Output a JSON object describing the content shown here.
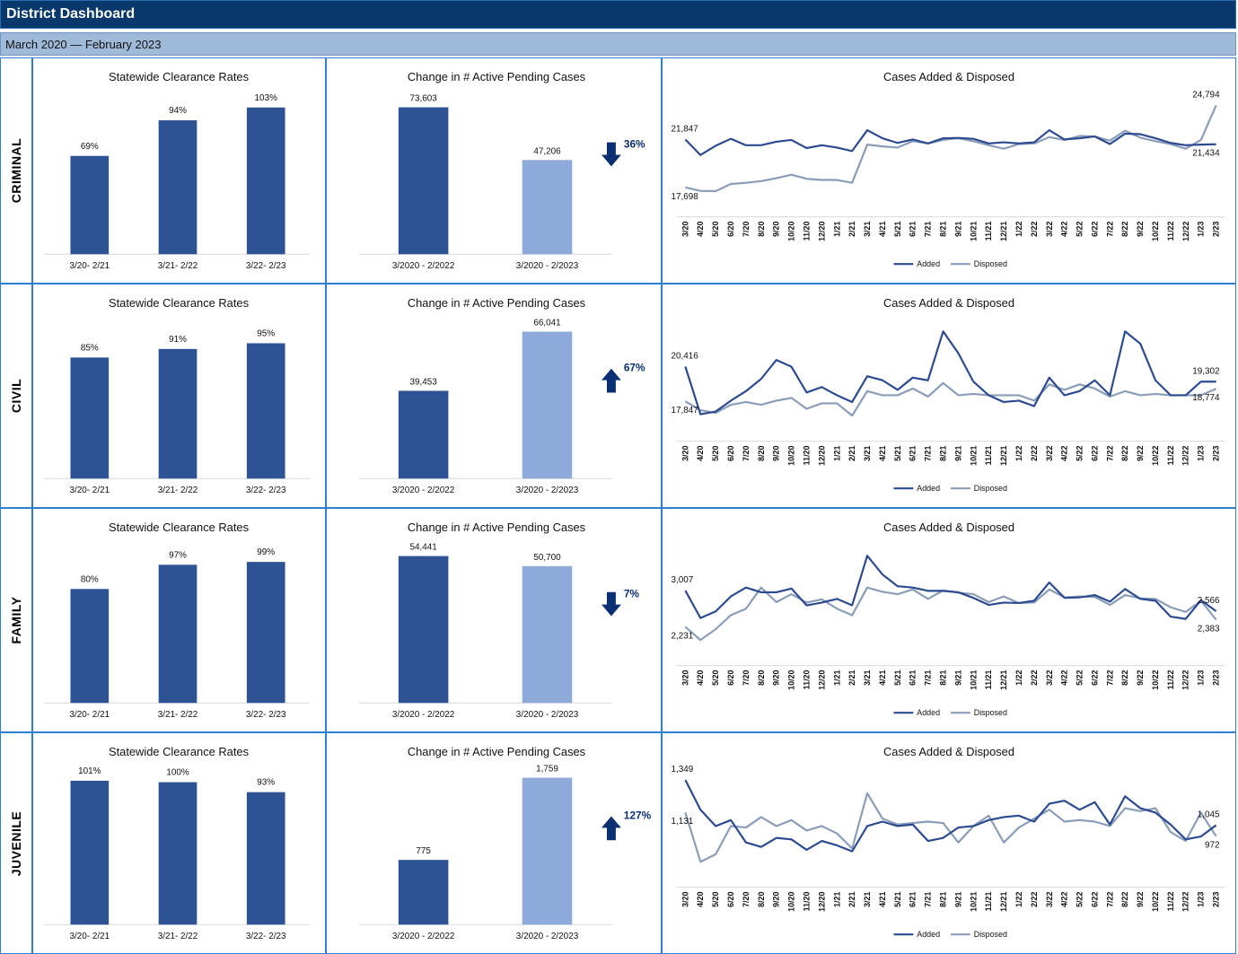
{
  "header": {
    "title": "District Dashboard",
    "subtitle": "March 2020 — February 2023"
  },
  "colors": {
    "dark_bar": "#2e5394",
    "light_bar": "#8eaadb",
    "added_line": "#2c4a8f",
    "disposed_line": "#8a9db8",
    "arrow": "#0b2f73"
  },
  "months": [
    "3/20",
    "4/20",
    "5/20",
    "6/20",
    "7/20",
    "8/20",
    "9/20",
    "10/20",
    "11/20",
    "12/20",
    "1/21",
    "2/21",
    "3/21",
    "4/21",
    "5/21",
    "6/21",
    "7/21",
    "8/21",
    "9/21",
    "10/21",
    "11/21",
    "12/21",
    "1/22",
    "2/22",
    "3/22",
    "4/22",
    "5/22",
    "6/22",
    "7/22",
    "8/22",
    "9/22",
    "10/22",
    "11/22",
    "12/22",
    "1/23",
    "2/23"
  ],
  "legend": {
    "added": "Added",
    "disposed": "Disposed"
  },
  "rows": [
    {
      "name": "CRIMINAL",
      "clearance": {
        "type": "bar",
        "title": "Statewide Clearance Rates",
        "categories": [
          "3/20- 2/21",
          "3/21- 2/22",
          "3/22- 2/23"
        ],
        "values": [
          69,
          94,
          103
        ],
        "labels": [
          "69%",
          "94%",
          "103%"
        ]
      },
      "pending": {
        "type": "bar",
        "title": "Change in # Active Pending Cases",
        "categories": [
          "3/2020 - 2/2022",
          "3/2020 - 2/2023"
        ],
        "values": [
          73603,
          47206
        ],
        "labels": [
          "73,603",
          "47,206"
        ],
        "change_pct": "36%",
        "direction": "down"
      },
      "trend": {
        "type": "line",
        "title": "Cases Added & Disposed",
        "series": [
          {
            "name": "Added",
            "values": [
              21847,
              20500,
              21300,
              21900,
              21350,
              21350,
              21650,
              21800,
              21100,
              21350,
              21150,
              20850,
              22650,
              21950,
              21550,
              21850,
              21500,
              21950,
              21980,
              21900,
              21500,
              21600,
              21500,
              21600,
              22650,
              21850,
              21950,
              22100,
              21450,
              22350,
              22300,
              21950,
              21550,
              21350,
              21400,
              21434
            ]
          },
          {
            "name": "Disposed",
            "values": [
              17698,
              17400,
              17380,
              18000,
              18100,
              18250,
              18500,
              18800,
              18450,
              18350,
              18350,
              18100,
              21400,
              21250,
              21150,
              21700,
              21500,
              21800,
              21950,
              21700,
              21350,
              21050,
              21450,
              21500,
              22050,
              21800,
              22150,
              22100,
              21750,
              22600,
              22000,
              21700,
              21450,
              21050,
              21800,
              24794
            ]
          }
        ],
        "first_labels": {
          "added": "21,847",
          "disposed": "17,698"
        },
        "last_labels": {
          "added": "21,434",
          "disposed": "24,794"
        }
      }
    },
    {
      "name": "CIVIL",
      "clearance": {
        "type": "bar",
        "title": "Statewide Clearance Rates",
        "categories": [
          "3/20- 2/21",
          "3/21- 2/22",
          "3/22- 2/23"
        ],
        "values": [
          85,
          91,
          95
        ],
        "labels": [
          "85%",
          "91%",
          "95%"
        ]
      },
      "pending": {
        "type": "bar",
        "title": "Change in # Active Pending Cases",
        "categories": [
          "3/2020 - 2/2022",
          "3/2020 - 2/2023"
        ],
        "values": [
          39453,
          66041
        ],
        "labels": [
          "39,453",
          "66,041"
        ],
        "change_pct": "67%",
        "direction": "up"
      },
      "trend": {
        "type": "line",
        "title": "Cases Added & Disposed",
        "series": [
          {
            "name": "Added",
            "values": [
              20416,
              16900,
              17100,
              17900,
              18600,
              19500,
              20900,
              20400,
              18500,
              18900,
              18300,
              17800,
              19700,
              19400,
              18700,
              19600,
              19400,
              23000,
              21400,
              19300,
              18300,
              17800,
              17900,
              17500,
              19600,
              18300,
              18600,
              19400,
              18300,
              23000,
              22100,
              19400,
              18300,
              18300,
              19300,
              19302
            ]
          },
          {
            "name": "Disposed",
            "values": [
              17847,
              17200,
              17000,
              17600,
              17800,
              17600,
              17900,
              18100,
              17300,
              17700,
              17700,
              16800,
              18600,
              18300,
              18300,
              18800,
              18200,
              19200,
              18300,
              18400,
              18300,
              18300,
              18300,
              17900,
              19100,
              18700,
              19100,
              18800,
              18200,
              18600,
              18300,
              18400,
              18300,
              18300,
              18300,
              18774
            ]
          }
        ],
        "first_labels": {
          "added": "20,416",
          "disposed": "17,847"
        },
        "last_labels": {
          "added": "19,302",
          "disposed": "18,774"
        }
      }
    },
    {
      "name": "FAMILY",
      "clearance": {
        "type": "bar",
        "title": "Statewide Clearance Rates",
        "categories": [
          "3/20- 2/21",
          "3/21- 2/22",
          "3/22- 2/23"
        ],
        "values": [
          80,
          97,
          99
        ],
        "labels": [
          "80%",
          "97%",
          "99%"
        ]
      },
      "pending": {
        "type": "bar",
        "title": "Change in # Active Pending Cases",
        "categories": [
          "3/2020 - 2/2022",
          "3/2020 - 2/2023"
        ],
        "values": [
          54441,
          50700
        ],
        "labels": [
          "54,441",
          "50,700"
        ],
        "change_pct": "7%",
        "direction": "down"
      },
      "trend": {
        "type": "line",
        "title": "Cases Added & Disposed",
        "series": [
          {
            "name": "Added",
            "values": [
              3007,
              2420,
              2560,
              2880,
              3070,
              2970,
              2970,
              3050,
              2690,
              2750,
              2830,
              2690,
              3750,
              3350,
              3100,
              3070,
              3000,
              3000,
              2970,
              2850,
              2700,
              2750,
              2740,
              2790,
              3180,
              2850,
              2860,
              2910,
              2770,
              3040,
              2830,
              2790,
              2450,
              2400,
              2800,
              2566
            ]
          },
          {
            "name": "Disposed",
            "values": [
              2231,
              1950,
              2180,
              2480,
              2620,
              3070,
              2760,
              2930,
              2750,
              2820,
              2620,
              2480,
              3070,
              2980,
              2930,
              3030,
              2830,
              3010,
              2960,
              2930,
              2760,
              2880,
              2740,
              2750,
              3030,
              2860,
              2880,
              2870,
              2700,
              2910,
              2840,
              2830,
              2650,
              2550,
              2790,
              2383
            ]
          }
        ],
        "first_labels": {
          "added": "3,007",
          "disposed": "2,231"
        },
        "last_labels": {
          "added": "2,566",
          "disposed": "2,383"
        }
      }
    },
    {
      "name": "JUVENILE",
      "clearance": {
        "type": "bar",
        "title": "Statewide Clearance Rates",
        "categories": [
          "3/20- 2/21",
          "3/21- 2/22",
          "3/22- 2/23"
        ],
        "values": [
          101,
          100,
          93
        ],
        "labels": [
          "101%",
          "100%",
          "93%"
        ]
      },
      "pending": {
        "type": "bar",
        "title": "Change in # Active Pending Cases",
        "categories": [
          "3/2020 - 2/2022",
          "3/2020 - 2/2023"
        ],
        "values": [
          775,
          1759
        ],
        "labels": [
          "775",
          "1,759"
        ],
        "change_pct": "127%",
        "direction": "up"
      },
      "trend": {
        "type": "line",
        "title": "Cases Added & Disposed",
        "series": [
          {
            "name": "Added",
            "values": [
              1349,
              1150,
              1040,
              1080,
              930,
              900,
              960,
              950,
              880,
              940,
              910,
              870,
              1040,
              1070,
              1040,
              1050,
              940,
              960,
              1030,
              1040,
              1080,
              1100,
              1110,
              1070,
              1190,
              1210,
              1150,
              1200,
              1050,
              1240,
              1160,
              1130,
              1050,
              950,
              970,
              1045
            ]
          },
          {
            "name": "Disposed",
            "values": [
              1131,
              800,
              850,
              1040,
              1030,
              1100,
              1040,
              1080,
              1010,
              1040,
              990,
              890,
              1260,
              1090,
              1050,
              1060,
              1070,
              1060,
              930,
              1040,
              1110,
              930,
              1030,
              1090,
              1150,
              1070,
              1080,
              1070,
              1040,
              1160,
              1140,
              1160,
              1000,
              940,
              1130,
              972
            ]
          }
        ],
        "first_labels": {
          "added": "1,349",
          "disposed": "1,131"
        },
        "last_labels": {
          "added": "1,045",
          "disposed": "972"
        }
      }
    }
  ],
  "chart_data": [
    {
      "type": "bar",
      "title": "Statewide Clearance Rates",
      "categories": [
        "3/20- 2/21",
        "3/21- 2/22",
        "3/22- 2/23"
      ],
      "values": [
        69,
        94,
        103
      ]
    },
    {
      "type": "bar",
      "title": "Change in # Active Pending Cases",
      "categories": [
        "3/2020 - 2/2022",
        "3/2020 - 2/2023"
      ],
      "values": [
        73603,
        47206
      ]
    },
    {
      "type": "line",
      "title": "Cases Added & Disposed",
      "first_and_last_values": {
        "Added": [
          21847,
          21434
        ],
        "Disposed": [
          17698,
          24794
        ]
      }
    },
    {
      "type": "bar",
      "title": "Statewide Clearance Rates",
      "categories": [
        "3/20- 2/21",
        "3/21- 2/22",
        "3/22- 2/23"
      ],
      "values": [
        85,
        91,
        95
      ]
    },
    {
      "type": "bar",
      "title": "Change in # Active Pending Cases",
      "categories": [
        "3/2020 - 2/2022",
        "3/2020 - 2/2023"
      ],
      "values": [
        39453,
        66041
      ]
    },
    {
      "type": "line",
      "title": "Cases Added & Disposed",
      "first_and_last_values": {
        "Added": [
          20416,
          19302
        ],
        "Disposed": [
          17847,
          18774
        ]
      }
    },
    {
      "type": "bar",
      "title": "Statewide Clearance Rates",
      "categories": [
        "3/20- 2/21",
        "3/21- 2/22",
        "3/22- 2/23"
      ],
      "values": [
        80,
        97,
        99
      ]
    },
    {
      "type": "bar",
      "title": "Change in # Active Pending Cases",
      "categories": [
        "3/2020 - 2/2022",
        "3/2020 - 2/2023"
      ],
      "values": [
        54441,
        50700
      ]
    },
    {
      "type": "line",
      "title": "Cases Added & Disposed",
      "first_and_last_values": {
        "Added": [
          3007,
          2566
        ],
        "Disposed": [
          2231,
          2383
        ]
      }
    },
    {
      "type": "bar",
      "title": "Statewide Clearance Rates",
      "categories": [
        "3/20- 2/21",
        "3/21- 2/22",
        "3/22- 2/23"
      ],
      "values": [
        101,
        100,
        93
      ]
    },
    {
      "type": "bar",
      "title": "Change in # Active Pending Cases",
      "categories": [
        "3/2020 - 2/2022",
        "3/2020 - 2/2023"
      ],
      "values": [
        775,
        1759
      ]
    },
    {
      "type": "line",
      "title": "Cases Added & Disposed",
      "first_and_last_values": {
        "Added": [
          1349,
          1045
        ],
        "Disposed": [
          1131,
          972
        ]
      }
    }
  ]
}
